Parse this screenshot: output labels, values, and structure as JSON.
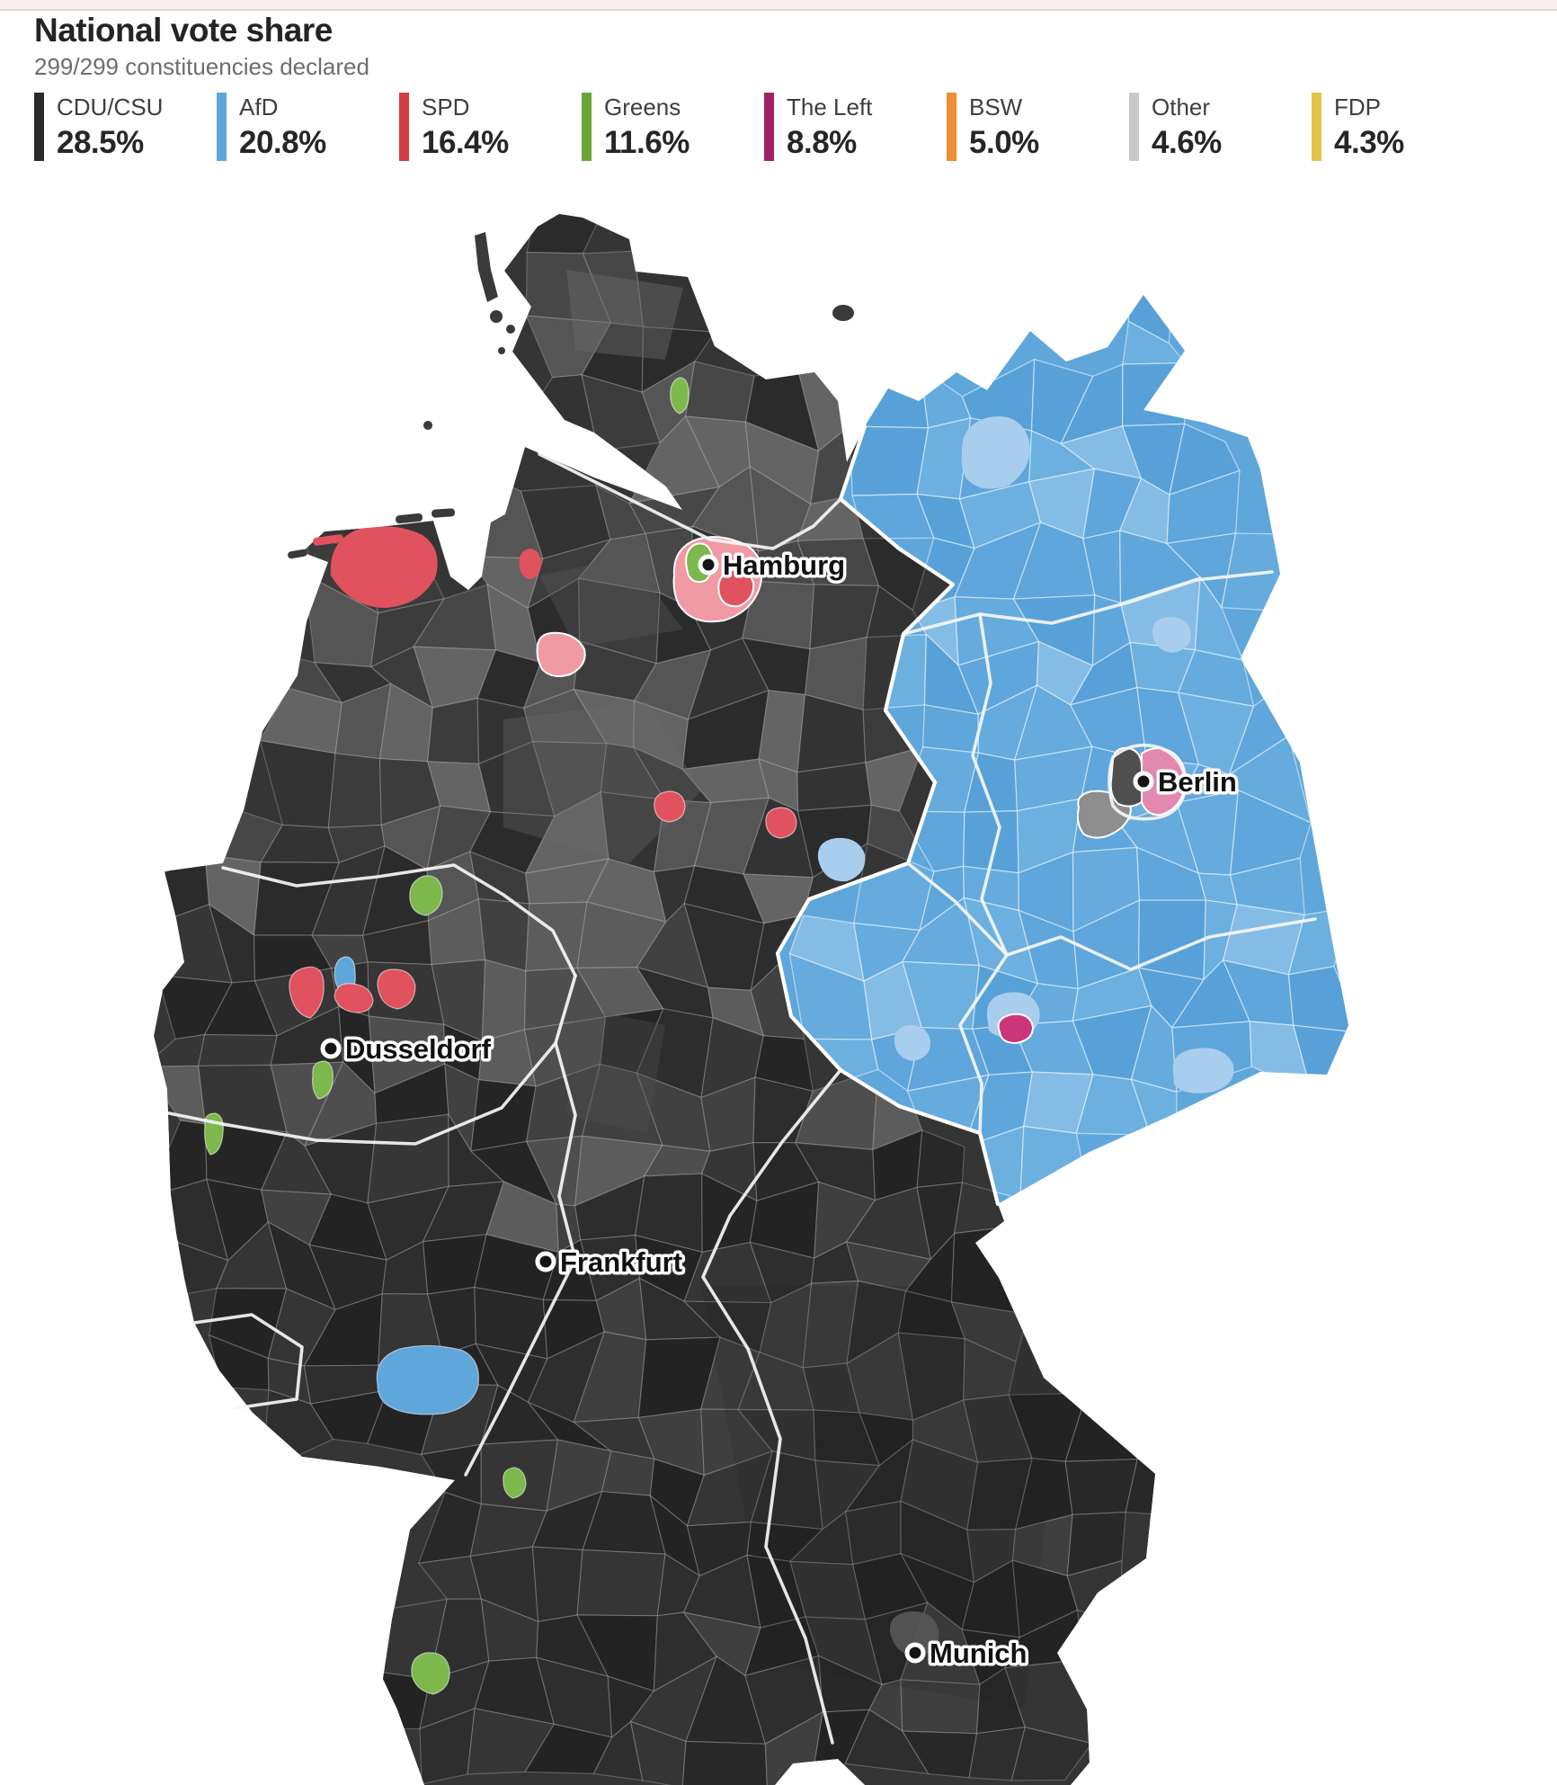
{
  "header": {
    "title": "National vote share",
    "subtitle": "299/299 constituencies declared"
  },
  "legend": [
    {
      "party": "CDU/CSU",
      "share": "28.5%",
      "color": "#2b2b2b"
    },
    {
      "party": "AfD",
      "share": "20.8%",
      "color": "#5ba8dc"
    },
    {
      "party": "SPD",
      "share": "16.4%",
      "color": "#d23c45"
    },
    {
      "party": "Greens",
      "share": "11.6%",
      "color": "#6aa437"
    },
    {
      "party": "The Left",
      "share": "8.8%",
      "color": "#a32064"
    },
    {
      "party": "BSW",
      "share": "5.0%",
      "color": "#ee8b33"
    },
    {
      "party": "Other",
      "share": "4.6%",
      "color": "#c9c9c9"
    },
    {
      "party": "FDP",
      "share": "4.3%",
      "color": "#e3c34a"
    }
  ],
  "map": {
    "cities": [
      {
        "name": "Hamburg"
      },
      {
        "name": "Berlin"
      },
      {
        "name": "Dusseldorf"
      },
      {
        "name": "Frankfurt"
      },
      {
        "name": "Munich"
      }
    ],
    "colors": {
      "cdu_strong": "#262626",
      "cdu_mid": "#3f3f3f",
      "cdu_weak": "#6b6b6b",
      "afd": "#5fa6db",
      "afd_weak": "#a9cdec",
      "spd": "#e0525e",
      "spd_weak": "#f09aa4",
      "green": "#7cb84c",
      "left": "#cb3579",
      "left_weak": "#e289b0",
      "other_gray": "#8e8e8e",
      "sea": "#ffffff",
      "state_border": "#ffffff"
    }
  },
  "chart_data": {
    "type": "choropleth",
    "title": "National vote share",
    "subtitle": "299/299 constituencies declared",
    "categories": [
      "CDU/CSU",
      "AfD",
      "SPD",
      "Greens",
      "The Left",
      "BSW",
      "Other",
      "FDP"
    ],
    "values": [
      28.5,
      20.8,
      16.4,
      11.6,
      8.8,
      5.0,
      4.6,
      4.3
    ]
  }
}
